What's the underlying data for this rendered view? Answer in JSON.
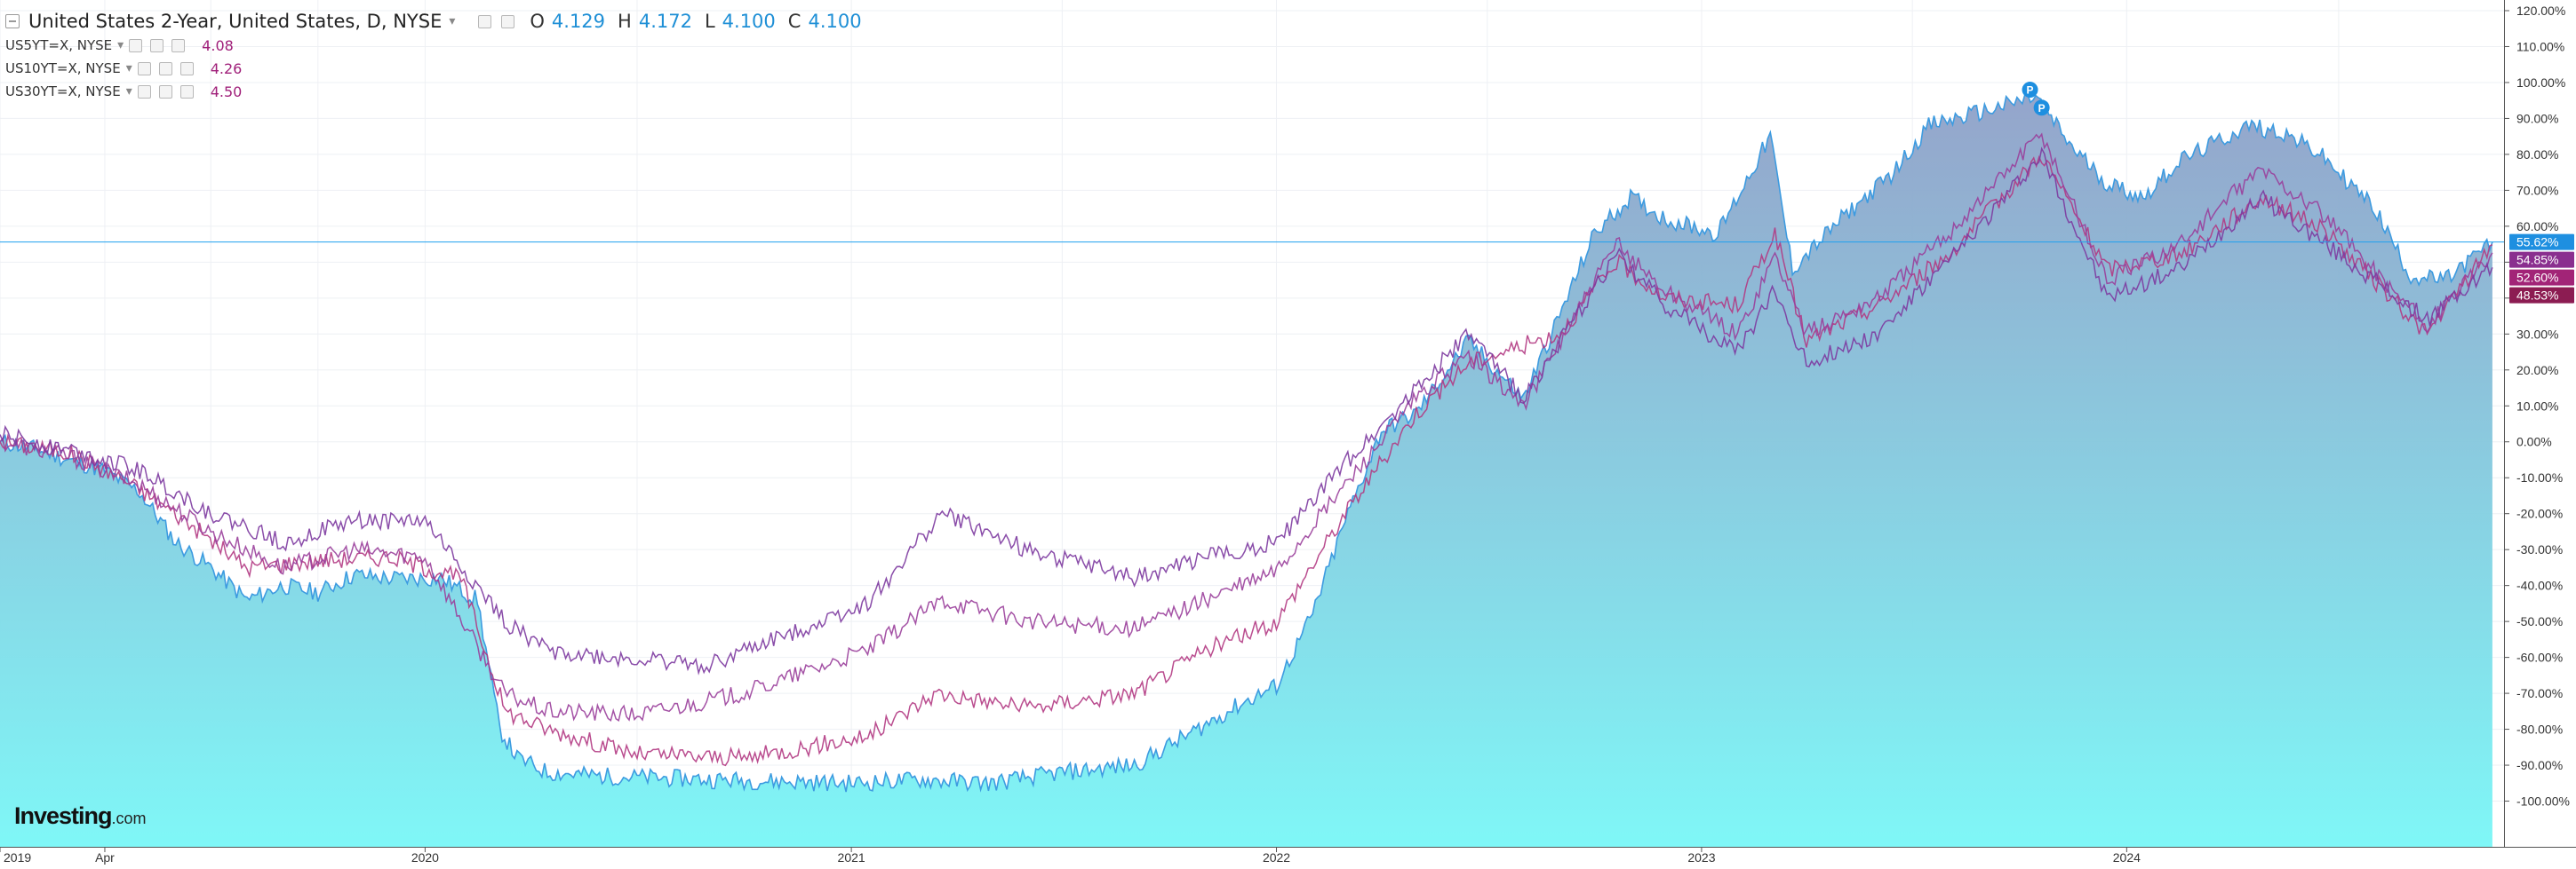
{
  "header": {
    "title": "United States 2-Year, United States, D, NYSE",
    "ohlc": [
      {
        "key": "O",
        "value": "4.129"
      },
      {
        "key": "H",
        "value": "4.172"
      },
      {
        "key": "L",
        "value": "4.100"
      },
      {
        "key": "C",
        "value": "4.100"
      }
    ]
  },
  "comparisons": [
    {
      "symbol": "US5YT=X, NYSE",
      "value": "4.08"
    },
    {
      "symbol": "US10YT=X, NYSE",
      "value": "4.26"
    },
    {
      "symbol": "US30YT=X, NYSE",
      "value": "4.50"
    }
  ],
  "branding": {
    "logo_main": "Investing",
    "logo_suffix": ".com"
  },
  "colors": {
    "main_line": "#3d9be0",
    "area_top": "#8fa0c8",
    "area_bottom": "#7ff7f7",
    "price_line": "#1ea0ef",
    "grid": "#eef0f4",
    "series": [
      "#b23a83",
      "#9a3f9b",
      "#7d3aa0"
    ],
    "badges": [
      "#1e8fe0",
      "#8a2f8f",
      "#a22477",
      "#8c1c52"
    ]
  },
  "chart_data": {
    "type": "area",
    "x_type": "date",
    "x_ticks": [
      "2019",
      "Apr",
      "2020",
      "2021",
      "2022",
      "2023",
      "2024"
    ],
    "x_tick_dates": [
      "2019-01-01",
      "2019-04-01",
      "2020-01-01",
      "2021-01-01",
      "2022-01-01",
      "2023-01-01",
      "2024-01-01"
    ],
    "xlim": [
      "2019-01-01",
      "2024-11-20"
    ],
    "ylim": [
      -110,
      120
    ],
    "y_ticks": [
      "120.00%",
      "110.00%",
      "100.00%",
      "90.00%",
      "80.00%",
      "70.00%",
      "60.00%",
      "50.00%",
      "40.00%",
      "30.00%",
      "20.00%",
      "10.00%",
      "0.00%",
      "-10.00%",
      "-20.00%",
      "-30.00%",
      "-40.00%",
      "-50.00%",
      "-60.00%",
      "-70.00%",
      "-80.00%",
      "-90.00%",
      "-100.00%"
    ],
    "y_tick_values": [
      120,
      110,
      100,
      90,
      80,
      70,
      60,
      50,
      40,
      30,
      20,
      10,
      0,
      -10,
      -20,
      -30,
      -40,
      -50,
      -60,
      -70,
      -80,
      -90,
      -100
    ],
    "grid": true,
    "current_price_line": 55.62,
    "markers": [
      {
        "label": "P",
        "x": "2023-10-10",
        "y": 98
      },
      {
        "label": "P",
        "x": "2023-10-20",
        "y": 93
      }
    ],
    "last_value_labels": [
      "55.62%",
      "54.85%",
      "52.60%",
      "48.53%"
    ],
    "last_values": [
      55.62,
      54.85,
      52.6,
      48.53
    ],
    "series": [
      {
        "name": "United States 2-Year",
        "style": "area",
        "points": [
          [
            "2019-01-01",
            0
          ],
          [
            "2019-02-01",
            -2
          ],
          [
            "2019-03-01",
            -5
          ],
          [
            "2019-04-01",
            -8
          ],
          [
            "2019-05-01",
            -14
          ],
          [
            "2019-06-01",
            -28
          ],
          [
            "2019-07-01",
            -35
          ],
          [
            "2019-08-01",
            -44
          ],
          [
            "2019-09-01",
            -40
          ],
          [
            "2019-10-01",
            -42
          ],
          [
            "2019-11-01",
            -37
          ],
          [
            "2019-12-01",
            -38
          ],
          [
            "2020-01-15",
            -38
          ],
          [
            "2020-02-15",
            -44
          ],
          [
            "2020-03-05",
            -80
          ],
          [
            "2020-03-20",
            -88
          ],
          [
            "2020-04-15",
            -92
          ],
          [
            "2020-06-01",
            -93
          ],
          [
            "2020-09-01",
            -94
          ],
          [
            "2021-01-01",
            -95
          ],
          [
            "2021-03-01",
            -94
          ],
          [
            "2021-05-01",
            -95
          ],
          [
            "2021-07-01",
            -92
          ],
          [
            "2021-09-01",
            -90
          ],
          [
            "2021-10-15",
            -82
          ],
          [
            "2021-12-01",
            -73
          ],
          [
            "2022-01-01",
            -68
          ],
          [
            "2022-02-01",
            -48
          ],
          [
            "2022-03-01",
            -22
          ],
          [
            "2022-04-01",
            3
          ],
          [
            "2022-05-01",
            8
          ],
          [
            "2022-06-15",
            28
          ],
          [
            "2022-08-01",
            12
          ],
          [
            "2022-09-01",
            35
          ],
          [
            "2022-10-01",
            58
          ],
          [
            "2022-11-01",
            68
          ],
          [
            "2022-12-01",
            62
          ],
          [
            "2023-01-15",
            58
          ],
          [
            "2023-03-01",
            85
          ],
          [
            "2023-03-20",
            48
          ],
          [
            "2023-05-01",
            62
          ],
          [
            "2023-06-15",
            75
          ],
          [
            "2023-07-15",
            88
          ],
          [
            "2023-09-01",
            92
          ],
          [
            "2023-10-15",
            96
          ],
          [
            "2023-11-15",
            82
          ],
          [
            "2023-12-15",
            72
          ],
          [
            "2024-01-15",
            68
          ],
          [
            "2024-02-15",
            78
          ],
          [
            "2024-04-15",
            88
          ],
          [
            "2024-05-15",
            86
          ],
          [
            "2024-06-15",
            80
          ],
          [
            "2024-08-01",
            65
          ],
          [
            "2024-09-01",
            46
          ],
          [
            "2024-10-01",
            45
          ],
          [
            "2024-11-10",
            55.62
          ]
        ]
      },
      {
        "name": "US5YT=X",
        "style": "line",
        "points": [
          [
            "2019-01-01",
            0
          ],
          [
            "2019-03-01",
            -3
          ],
          [
            "2019-04-15",
            -10
          ],
          [
            "2019-06-01",
            -20
          ],
          [
            "2019-08-01",
            -35
          ],
          [
            "2019-10-01",
            -33
          ],
          [
            "2019-12-01",
            -32
          ],
          [
            "2020-02-01",
            -38
          ],
          [
            "2020-03-10",
            -75
          ],
          [
            "2020-04-15",
            -80
          ],
          [
            "2020-07-01",
            -87
          ],
          [
            "2020-10-01",
            -88
          ],
          [
            "2021-01-15",
            -82
          ],
          [
            "2021-03-15",
            -70
          ],
          [
            "2021-06-01",
            -74
          ],
          [
            "2021-09-01",
            -70
          ],
          [
            "2021-11-01",
            -58
          ],
          [
            "2022-01-01",
            -50
          ],
          [
            "2022-03-01",
            -20
          ],
          [
            "2022-05-01",
            8
          ],
          [
            "2022-06-15",
            22
          ],
          [
            "2022-09-01",
            30
          ],
          [
            "2022-10-20",
            50
          ],
          [
            "2022-12-01",
            40
          ],
          [
            "2023-02-01",
            38
          ],
          [
            "2023-03-05",
            58
          ],
          [
            "2023-04-01",
            28
          ],
          [
            "2023-06-01",
            38
          ],
          [
            "2023-08-01",
            52
          ],
          [
            "2023-10-20",
            80
          ],
          [
            "2023-12-15",
            48
          ],
          [
            "2024-02-15",
            52
          ],
          [
            "2024-04-25",
            68
          ],
          [
            "2024-06-15",
            60
          ],
          [
            "2024-09-15",
            30
          ],
          [
            "2024-11-10",
            54.85
          ]
        ]
      },
      {
        "name": "US10YT=X",
        "style": "line",
        "points": [
          [
            "2019-01-01",
            0
          ],
          [
            "2019-03-01",
            -4
          ],
          [
            "2019-05-01",
            -12
          ],
          [
            "2019-07-01",
            -25
          ],
          [
            "2019-09-01",
            -35
          ],
          [
            "2019-11-01",
            -30
          ],
          [
            "2020-01-01",
            -32
          ],
          [
            "2020-03-09",
            -70
          ],
          [
            "2020-04-15",
            -75
          ],
          [
            "2020-07-01",
            -76
          ],
          [
            "2020-10-01",
            -70
          ],
          [
            "2021-01-15",
            -58
          ],
          [
            "2021-03-20",
            -44
          ],
          [
            "2021-06-01",
            -50
          ],
          [
            "2021-09-01",
            -52
          ],
          [
            "2021-11-01",
            -44
          ],
          [
            "2022-01-01",
            -36
          ],
          [
            "2022-03-01",
            -12
          ],
          [
            "2022-05-01",
            12
          ],
          [
            "2022-06-15",
            24
          ],
          [
            "2022-08-01",
            10
          ],
          [
            "2022-10-20",
            55
          ],
          [
            "2022-12-01",
            42
          ],
          [
            "2023-02-01",
            30
          ],
          [
            "2023-03-05",
            52
          ],
          [
            "2023-04-01",
            30
          ],
          [
            "2023-06-01",
            40
          ],
          [
            "2023-08-01",
            58
          ],
          [
            "2023-10-20",
            86
          ],
          [
            "2023-12-15",
            45
          ],
          [
            "2024-02-15",
            55
          ],
          [
            "2024-04-25",
            76
          ],
          [
            "2024-06-15",
            64
          ],
          [
            "2024-09-15",
            32
          ],
          [
            "2024-11-10",
            52.6
          ]
        ]
      },
      {
        "name": "US30YT=X",
        "style": "line",
        "points": [
          [
            "2019-01-01",
            2
          ],
          [
            "2019-03-01",
            -2
          ],
          [
            "2019-05-01",
            -8
          ],
          [
            "2019-07-01",
            -20
          ],
          [
            "2019-09-01",
            -28
          ],
          [
            "2019-11-01",
            -22
          ],
          [
            "2020-01-01",
            -22
          ],
          [
            "2020-03-09",
            -50
          ],
          [
            "2020-04-15",
            -58
          ],
          [
            "2020-06-01",
            -60
          ],
          [
            "2020-09-01",
            -62
          ],
          [
            "2021-01-15",
            -45
          ],
          [
            "2021-03-20",
            -20
          ],
          [
            "2021-06-01",
            -30
          ],
          [
            "2021-09-01",
            -38
          ],
          [
            "2021-11-01",
            -32
          ],
          [
            "2022-01-01",
            -28
          ],
          [
            "2022-03-01",
            -6
          ],
          [
            "2022-05-01",
            15
          ],
          [
            "2022-06-15",
            30
          ],
          [
            "2022-08-01",
            12
          ],
          [
            "2022-10-20",
            52
          ],
          [
            "2022-12-01",
            38
          ],
          [
            "2023-02-01",
            25
          ],
          [
            "2023-03-05",
            42
          ],
          [
            "2023-04-01",
            22
          ],
          [
            "2023-06-01",
            30
          ],
          [
            "2023-08-01",
            50
          ],
          [
            "2023-10-20",
            80
          ],
          [
            "2023-12-15",
            40
          ],
          [
            "2024-02-15",
            48
          ],
          [
            "2024-04-25",
            68
          ],
          [
            "2024-06-15",
            56
          ],
          [
            "2024-09-15",
            34
          ],
          [
            "2024-11-10",
            48.53
          ]
        ]
      }
    ]
  }
}
